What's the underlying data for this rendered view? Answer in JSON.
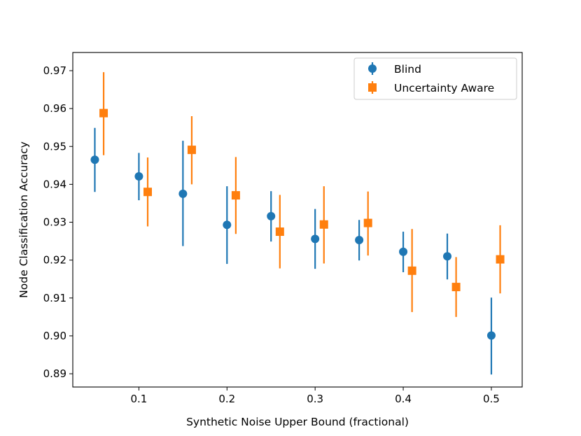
{
  "chart_data": {
    "type": "scatter",
    "title": "",
    "xlabel": "Synthetic Noise Upper Bound (fractional)",
    "ylabel": "Node Classification Accuracy",
    "xlim": [
      0.025,
      0.535
    ],
    "ylim": [
      0.8865,
      0.9748
    ],
    "xticks": [
      0.1,
      0.2,
      0.3,
      0.4,
      0.5
    ],
    "xtick_labels": [
      "0.1",
      "0.2",
      "0.3",
      "0.4",
      "0.5"
    ],
    "yticks": [
      0.89,
      0.9,
      0.91,
      0.92,
      0.93,
      0.94,
      0.95,
      0.96,
      0.97
    ],
    "ytick_labels": [
      "0.89",
      "0.90",
      "0.91",
      "0.92",
      "0.93",
      "0.94",
      "0.95",
      "0.96",
      "0.97"
    ],
    "grid": false,
    "legend_position": "top-right",
    "series": [
      {
        "name": "Blind",
        "marker": "circle",
        "color": "#1f77b4",
        "x": [
          0.05,
          0.1,
          0.15,
          0.2,
          0.25,
          0.3,
          0.35,
          0.4,
          0.45,
          0.5
        ],
        "y": [
          0.9465,
          0.9421,
          0.9375,
          0.9293,
          0.9316,
          0.9256,
          0.9253,
          0.9222,
          0.921,
          0.9001
        ],
        "err_low": [
          0.938,
          0.9358,
          0.9237,
          0.919,
          0.9249,
          0.9177,
          0.9199,
          0.9168,
          0.9149,
          0.8898
        ],
        "err_high": [
          0.9549,
          0.9483,
          0.9515,
          0.9395,
          0.9382,
          0.9335,
          0.9306,
          0.9275,
          0.927,
          0.9101
        ]
      },
      {
        "name": "Uncertainty Aware",
        "marker": "square",
        "color": "#ff7f0e",
        "x": [
          0.06,
          0.11,
          0.16,
          0.21,
          0.26,
          0.31,
          0.36,
          0.41,
          0.46,
          0.51
        ],
        "y": [
          0.9588,
          0.938,
          0.9491,
          0.9371,
          0.9275,
          0.9294,
          0.9298,
          0.9172,
          0.9129,
          0.9202
        ],
        "err_low": [
          0.9477,
          0.9289,
          0.94,
          0.9269,
          0.9178,
          0.9191,
          0.9212,
          0.9063,
          0.905,
          0.9112
        ],
        "err_high": [
          0.9696,
          0.9471,
          0.958,
          0.9472,
          0.9372,
          0.9395,
          0.9381,
          0.9282,
          0.9208,
          0.9292
        ]
      }
    ]
  }
}
